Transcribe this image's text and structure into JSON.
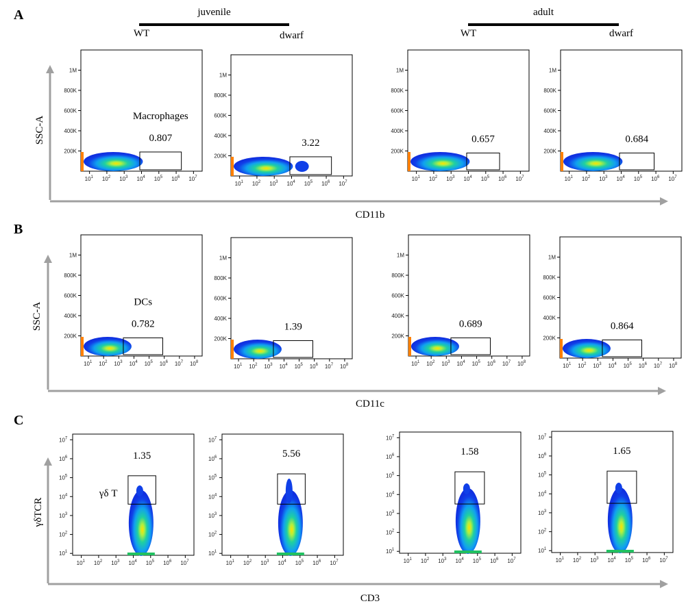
{
  "chart_data": {
    "type": "scatter",
    "subtype": "flow-cytometry-density",
    "groups": [
      "juvenile",
      "adult"
    ],
    "conditions": [
      "WT",
      "dwarf",
      "WT",
      "dwarf"
    ],
    "rows": [
      {
        "letter": "A",
        "xlabel": "CD11b",
        "ylabel": "SSC-A",
        "gate_name": "Macrophages",
        "x_ticks": [
          "1",
          "2",
          "3",
          "4",
          "5",
          "6",
          "7"
        ],
        "y_ticks": [
          "200K",
          "400K",
          "600K",
          "800K",
          "1M"
        ],
        "xlim_log10": [
          0.5,
          7.5
        ],
        "ylim": [
          0,
          1200000
        ],
        "values": [
          "0.807",
          "3.22",
          "0.657",
          "0.684"
        ]
      },
      {
        "letter": "B",
        "xlabel": "CD11c",
        "ylabel": "SSC-A",
        "gate_name": "DCs",
        "x_ticks": [
          "1",
          "2",
          "3",
          "4",
          "5",
          "6",
          "7",
          "8"
        ],
        "y_ticks": [
          "200K",
          "400K",
          "600K",
          "800K",
          "1M"
        ],
        "xlim_log10": [
          0.5,
          8.5
        ],
        "ylim": [
          0,
          1200000
        ],
        "values": [
          "0.782",
          "1.39",
          "0.689",
          "0.864"
        ]
      },
      {
        "letter": "C",
        "xlabel": "CD3",
        "ylabel": "γδTCR",
        "gate_name": "γδ T",
        "x_ticks": [
          "1",
          "2",
          "3",
          "4",
          "5",
          "6",
          "7"
        ],
        "y_ticks": [
          "1",
          "2",
          "3",
          "4",
          "5",
          "6",
          "7"
        ],
        "xlim_log10": [
          0.5,
          7.5
        ],
        "ylim_log10": [
          0.9,
          7.3
        ],
        "values": [
          "1.35",
          "5.56",
          "1.58",
          "1.65"
        ]
      }
    ]
  },
  "colors": {
    "arrow": "#a0a0a0",
    "density_low": "#1030e0",
    "density_mid": "#20d0a0",
    "density_high": "#ffe000"
  }
}
